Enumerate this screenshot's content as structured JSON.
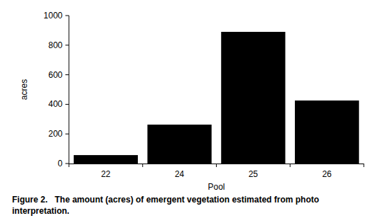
{
  "chart_data": {
    "type": "bar",
    "title": "Figure 2.   The amount (acres) of emergent vegetation estimated from photo interpretation.",
    "x_label": "Pool",
    "y_label": "acres",
    "categories": [
      "22",
      "24",
      "25",
      "26"
    ],
    "values": [
      57,
      263,
      890,
      426
    ],
    "color": "#000000",
    "ylim": [
      0,
      1000
    ],
    "yticks": [
      0,
      200,
      400,
      600,
      800,
      1000
    ],
    "grid": false
  }
}
